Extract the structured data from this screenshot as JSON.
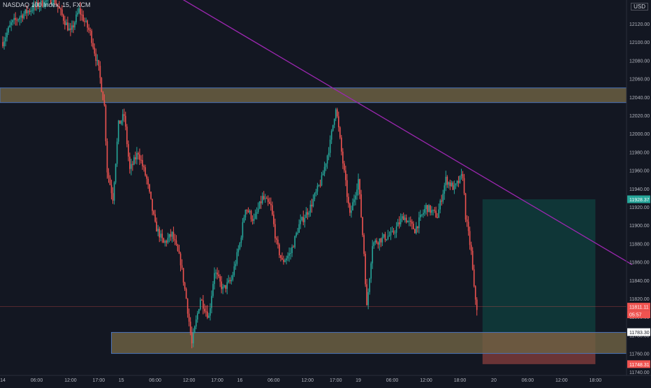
{
  "header": {
    "symbol": "NASDAQ 100 Index, 15, FXCM",
    "currency": "USD"
  },
  "colors": {
    "background": "#131722",
    "up": "#26a69a",
    "down": "#ef5350",
    "zone_fill": "#6b5f42",
    "zone_border": "#4a72b8",
    "trendline": "#9c27b0",
    "target_fill": "#0f3a3a",
    "stop_fill": "#7a3a3a",
    "axis_text": "#b2b5be"
  },
  "chart_data": {
    "type": "candlestick",
    "instrument": "NASDAQ 100 Index",
    "timeframe": "15",
    "source": "FXCM",
    "y_axis": {
      "ticks": [
        12120.0,
        12100.0,
        12080.0,
        12060.0,
        12040.0,
        12020.0,
        12000.0,
        11980.0,
        11960.0,
        11940.0,
        11920.0,
        11900.0,
        11880.0,
        11860.0,
        11840.0,
        11820.0,
        11800.0,
        11780.0,
        11760.0,
        11740.0
      ],
      "ylim": [
        11736,
        12146
      ],
      "price_labels": [
        {
          "value": "11928.37",
          "kind": "position-target"
        },
        {
          "value": "11811.11",
          "kind": "last-price"
        },
        {
          "value": "05:57",
          "kind": "countdown"
        },
        {
          "value": "11783.30",
          "kind": "position-entry"
        },
        {
          "value": "11748.31",
          "kind": "position-stop"
        }
      ]
    },
    "x_axis": {
      "ticks": [
        {
          "label": "14",
          "index": 0
        },
        {
          "label": "06:00",
          "index": 24
        },
        {
          "label": "12:00",
          "index": 48
        },
        {
          "label": "17:00",
          "index": 68
        },
        {
          "label": "15",
          "index": 84
        },
        {
          "label": "06:00",
          "index": 108
        },
        {
          "label": "12:00",
          "index": 132
        },
        {
          "label": "17:00",
          "index": 152
        },
        {
          "label": "16",
          "index": 168
        },
        {
          "label": "06:00",
          "index": 192
        },
        {
          "label": "12:00",
          "index": 216
        },
        {
          "label": "17:00",
          "index": 236
        },
        {
          "label": "19",
          "index": 252
        },
        {
          "label": "06:00",
          "index": 276
        },
        {
          "label": "12:00",
          "index": 300
        },
        {
          "label": "18:00",
          "index": 324
        },
        {
          "label": "20",
          "index": 348
        },
        {
          "label": "06:00",
          "index": 372
        },
        {
          "label": "12:00",
          "index": 396
        },
        {
          "label": "18:00",
          "index": 420
        }
      ]
    },
    "path_points": [
      [
        0,
        12100
      ],
      [
        6,
        12120
      ],
      [
        14,
        12130
      ],
      [
        24,
        12140
      ],
      [
        36,
        12148
      ],
      [
        48,
        12110
      ],
      [
        54,
        12135
      ],
      [
        62,
        12110
      ],
      [
        68,
        12070
      ],
      [
        72,
        12030
      ],
      [
        74,
        11960
      ],
      [
        78,
        11930
      ],
      [
        82,
        12010
      ],
      [
        86,
        12020
      ],
      [
        90,
        11960
      ],
      [
        96,
        11980
      ],
      [
        102,
        11950
      ],
      [
        108,
        11900
      ],
      [
        114,
        11880
      ],
      [
        120,
        11890
      ],
      [
        126,
        11860
      ],
      [
        130,
        11820
      ],
      [
        134,
        11770
      ],
      [
        140,
        11820
      ],
      [
        146,
        11800
      ],
      [
        150,
        11850
      ],
      [
        156,
        11830
      ],
      [
        162,
        11840
      ],
      [
        168,
        11880
      ],
      [
        172,
        11920
      ],
      [
        178,
        11905
      ],
      [
        184,
        11930
      ],
      [
        190,
        11920
      ],
      [
        194,
        11880
      ],
      [
        198,
        11860
      ],
      [
        204,
        11870
      ],
      [
        210,
        11900
      ],
      [
        218,
        11920
      ],
      [
        226,
        11950
      ],
      [
        232,
        11990
      ],
      [
        236,
        12030
      ],
      [
        240,
        11980
      ],
      [
        246,
        11910
      ],
      [
        252,
        11950
      ],
      [
        256,
        11870
      ],
      [
        258,
        11810
      ],
      [
        262,
        11880
      ],
      [
        268,
        11885
      ],
      [
        276,
        11890
      ],
      [
        284,
        11910
      ],
      [
        292,
        11895
      ],
      [
        300,
        11920
      ],
      [
        308,
        11910
      ],
      [
        314,
        11950
      ],
      [
        320,
        11940
      ],
      [
        326,
        11955
      ],
      [
        328,
        11910
      ],
      [
        332,
        11870
      ],
      [
        334,
        11830
      ],
      [
        336,
        11810
      ]
    ],
    "horizontal_zones": [
      {
        "name": "resistance-zone",
        "top": 12050,
        "bottom": 12034
      },
      {
        "name": "support-zone",
        "top": 11783,
        "bottom": 11760
      }
    ],
    "trendline": {
      "start": [
        126,
        12148
      ],
      "end": [
        446,
        11857
      ]
    },
    "long_position": {
      "entry": 11783.3,
      "target": 11928.37,
      "stop": 11748.31,
      "start_index": 340,
      "end_index": 420
    },
    "last_price": 11811.11
  }
}
